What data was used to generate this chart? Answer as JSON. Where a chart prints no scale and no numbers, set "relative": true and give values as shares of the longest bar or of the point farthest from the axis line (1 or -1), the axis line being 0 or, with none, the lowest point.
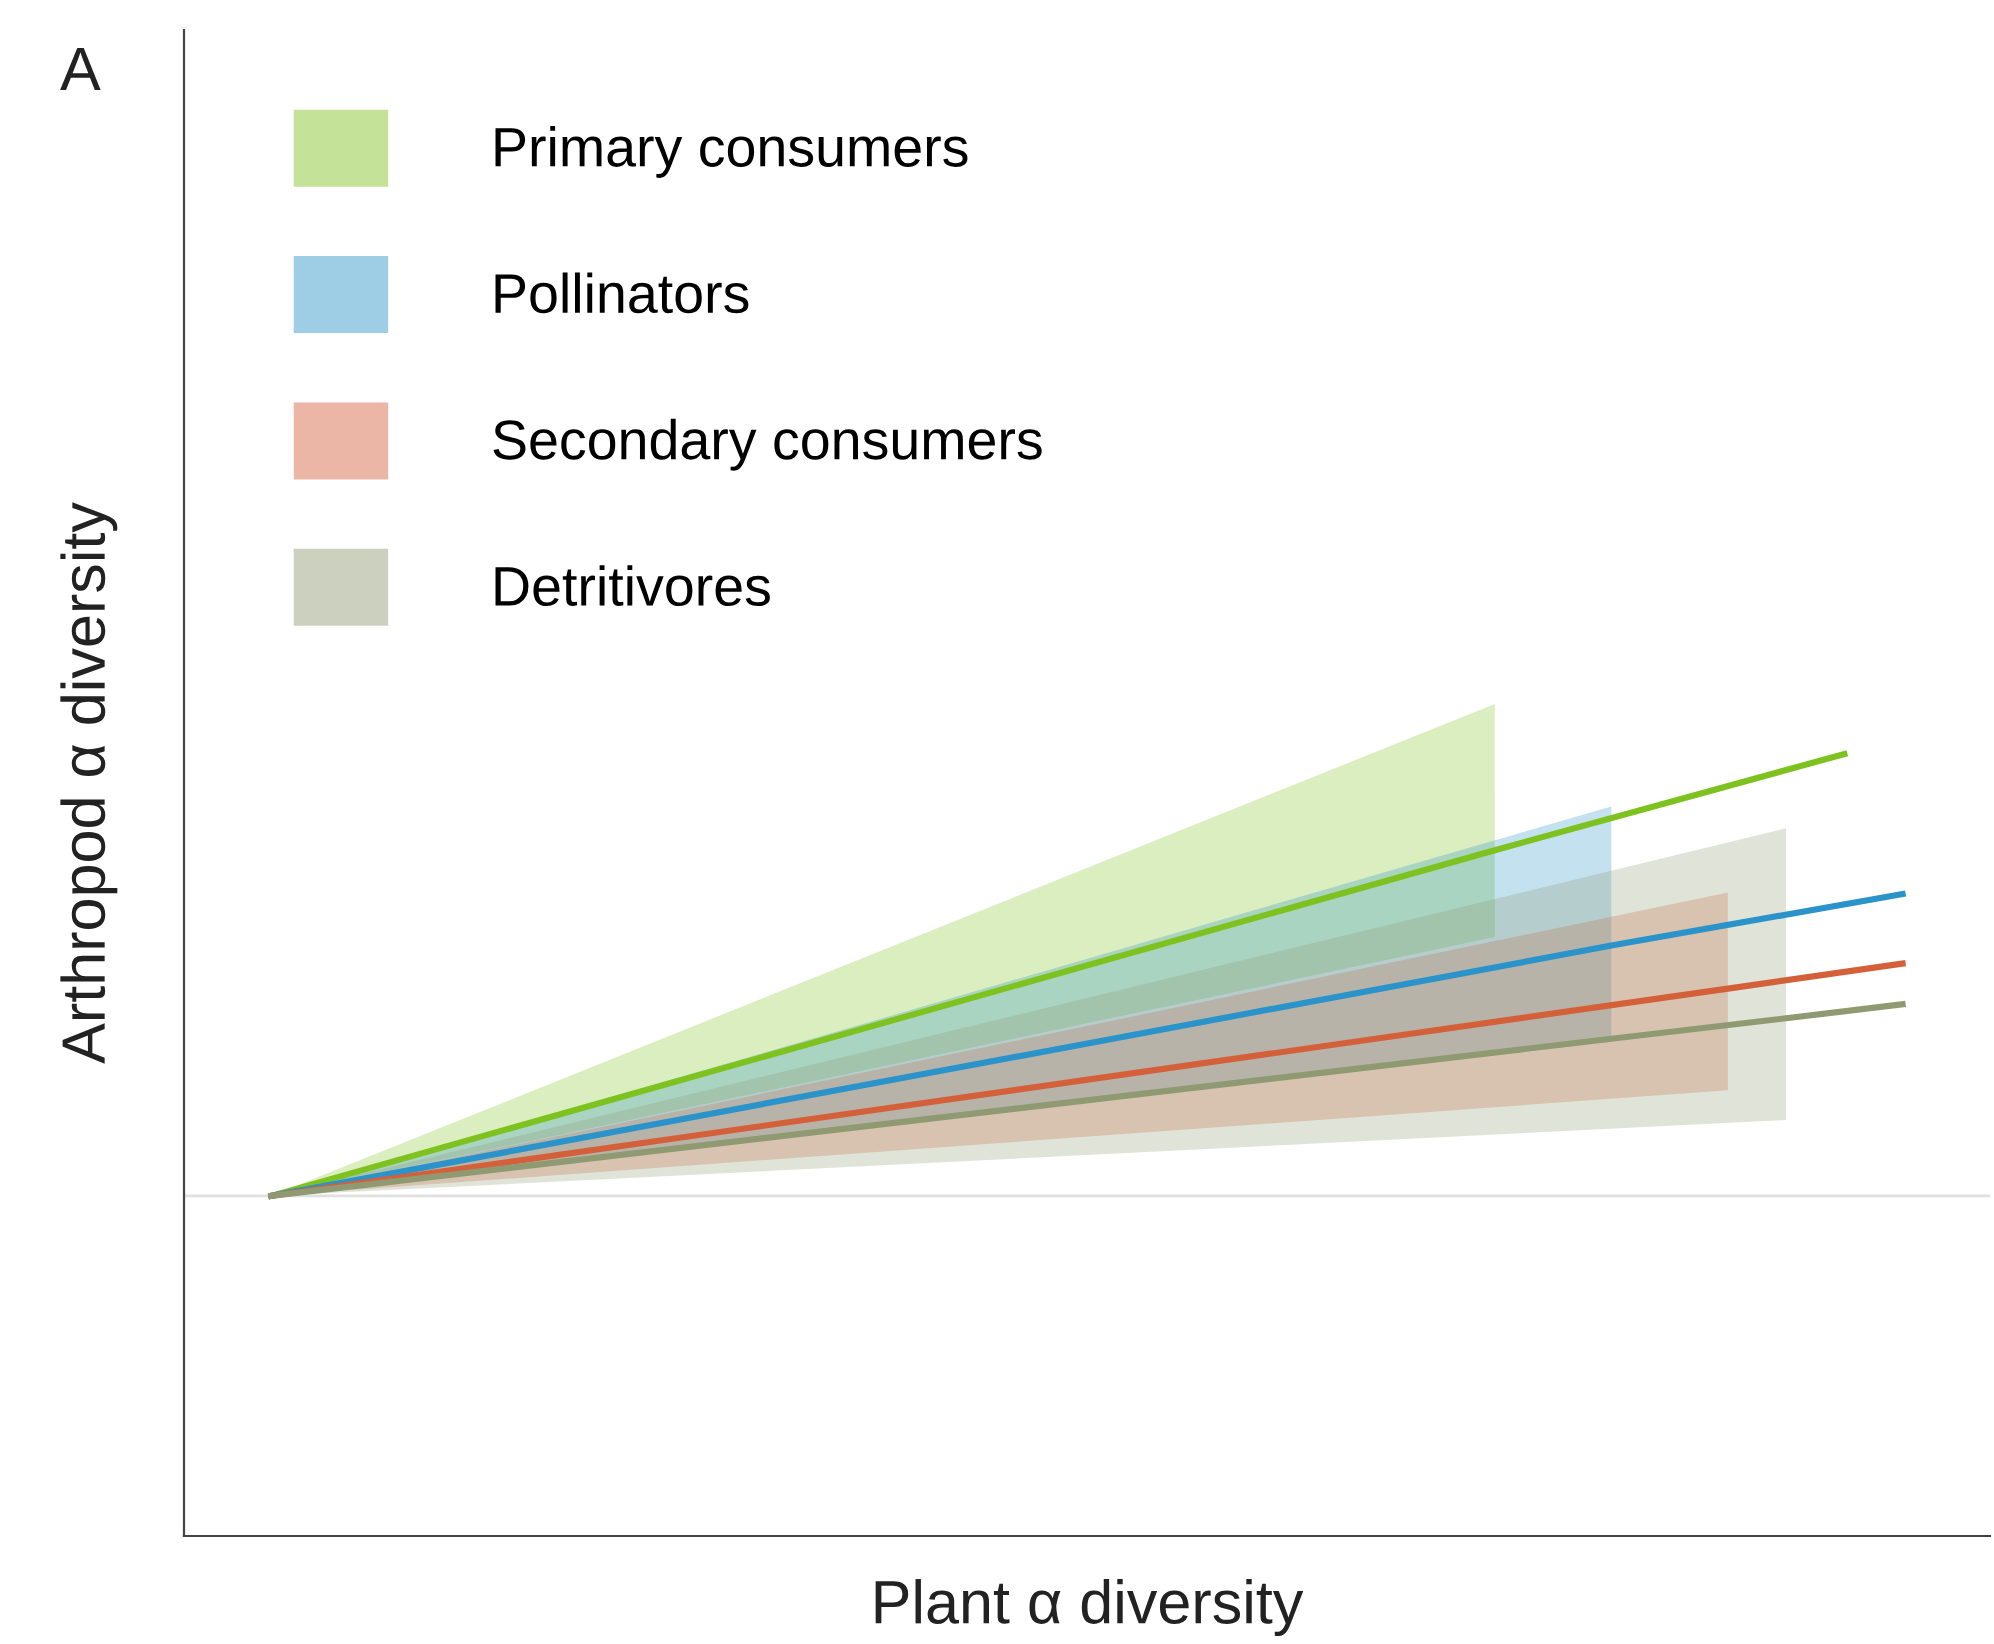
{
  "chart_data": {
    "type": "line",
    "relative": true,
    "xlabel": "Plant α diversity",
    "ylabel": "Arthropod α diversity",
    "annotations": [
      "A"
    ],
    "categories": [
      null,
      null,
      null,
      null,
      null,
      null,
      null,
      null,
      null,
      null,
      null,
      null,
      null,
      null,
      null,
      null,
      null,
      null,
      null,
      null,
      null,
      null,
      null,
      null,
      null,
      null,
      null,
      null,
      null
    ],
    "legend": "top left",
    "marker": "none",
    "line_style": "solid",
    "ref_lines": [
      {
        "axis": "y",
        "value": 0.435,
        "color": "#e0e0e0"
      }
    ],
    "series": [
      {
        "name": "Primary consumers",
        "color": "#7dc21e",
        "values": [
          0.435,
          null,
          null,
          null,
          null,
          null,
          null,
          null,
          null,
          null,
          null,
          null,
          null,
          null,
          null,
          null,
          null,
          null,
          null,
          null,
          null,
          0.877,
          null,
          null,
          null,
          null,
          null,
          1.0,
          null
        ],
        "lower": [
          0.435,
          null,
          null,
          null,
          null,
          null,
          null,
          null,
          null,
          null,
          null,
          null,
          null,
          null,
          null,
          null,
          null,
          null,
          null,
          null,
          null,
          0.766,
          null,
          null,
          null,
          null,
          null,
          null,
          null
        ],
        "upper": [
          0.435,
          null,
          null,
          null,
          null,
          null,
          null,
          null,
          null,
          null,
          null,
          null,
          null,
          null,
          null,
          null,
          null,
          null,
          null,
          null,
          null,
          1.064,
          null,
          null,
          null,
          null,
          null,
          null,
          null
        ]
      },
      {
        "name": "Pollinators",
        "color": "#2a93c9",
        "values": [
          0.435,
          null,
          null,
          null,
          null,
          null,
          null,
          null,
          null,
          null,
          null,
          null,
          null,
          null,
          null,
          null,
          null,
          null,
          null,
          null,
          null,
          null,
          null,
          0.755,
          null,
          null,
          null,
          null,
          0.821
        ],
        "lower": [
          0.435,
          null,
          null,
          null,
          null,
          null,
          null,
          null,
          null,
          null,
          null,
          null,
          null,
          null,
          null,
          null,
          null,
          null,
          null,
          null,
          null,
          null,
          null,
          0.632,
          null,
          null,
          null,
          null,
          null
        ],
        "upper": [
          0.435,
          null,
          null,
          null,
          null,
          null,
          null,
          null,
          null,
          null,
          null,
          null,
          null,
          null,
          null,
          null,
          null,
          null,
          null,
          null,
          null,
          null,
          null,
          0.933,
          null,
          null,
          null,
          null,
          null
        ]
      },
      {
        "name": "Secondary consumers",
        "color": "#d4603a",
        "values": [
          0.435,
          null,
          null,
          null,
          null,
          null,
          null,
          null,
          null,
          null,
          null,
          null,
          null,
          null,
          null,
          null,
          null,
          null,
          null,
          null,
          null,
          null,
          null,
          null,
          null,
          0.7,
          null,
          null,
          0.732
        ],
        "lower": [
          0.435,
          null,
          null,
          null,
          null,
          null,
          null,
          null,
          null,
          null,
          null,
          null,
          null,
          null,
          null,
          null,
          null,
          null,
          null,
          null,
          null,
          null,
          null,
          null,
          null,
          0.57,
          null,
          null,
          null
        ],
        "upper": [
          0.435,
          null,
          null,
          null,
          null,
          null,
          null,
          null,
          null,
          null,
          null,
          null,
          null,
          null,
          null,
          null,
          null,
          null,
          null,
          null,
          null,
          null,
          null,
          null,
          null,
          0.823,
          null,
          null,
          null
        ]
      },
      {
        "name": "Detritivores",
        "color": "#8f9a72",
        "values": [
          0.435,
          null,
          null,
          null,
          null,
          null,
          null,
          null,
          null,
          null,
          null,
          null,
          null,
          null,
          null,
          null,
          null,
          null,
          null,
          null,
          null,
          null,
          null,
          null,
          null,
          null,
          0.662,
          null,
          0.68
        ],
        "lower": [
          0.435,
          null,
          null,
          null,
          null,
          null,
          null,
          null,
          null,
          null,
          null,
          null,
          null,
          null,
          null,
          null,
          null,
          null,
          null,
          null,
          null,
          null,
          null,
          null,
          null,
          null,
          0.532,
          null,
          null
        ],
        "upper": [
          0.435,
          null,
          null,
          null,
          null,
          null,
          null,
          null,
          null,
          null,
          null,
          null,
          null,
          null,
          null,
          null,
          null,
          null,
          null,
          null,
          null,
          null,
          null,
          null,
          null,
          null,
          0.905,
          null,
          null
        ]
      }
    ]
  }
}
